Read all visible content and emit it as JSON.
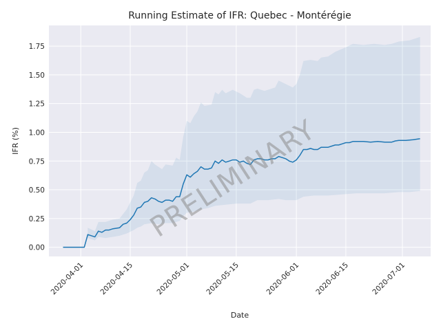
{
  "chart_data": {
    "type": "line",
    "title": "Running Estimate of IFR: Quebec - Montérégie",
    "xlabel": "Date",
    "ylabel": "IFR (%)",
    "watermark": "PRELIMINARY",
    "grid": true,
    "colors": {
      "background": "#eaeaf2",
      "grid": "#ffffff",
      "line": "#1f77b4",
      "band": "#1f77b4"
    },
    "xlim": [
      "2020-03-23",
      "2020-07-09"
    ],
    "ylim": [
      -0.08,
      1.93
    ],
    "x_ticks": [
      "2020-04-01",
      "2020-04-15",
      "2020-05-01",
      "2020-05-15",
      "2020-06-01",
      "2020-06-15",
      "2020-07-01"
    ],
    "y_ticks": [
      "0.00",
      "0.25",
      "0.50",
      "0.75",
      "1.00",
      "1.25",
      "1.50",
      "1.75"
    ],
    "series": [
      {
        "points": [
          [
            "2020-03-27",
            0.0
          ],
          [
            "2020-04-01",
            0.0
          ],
          [
            "2020-04-02",
            0.0
          ],
          [
            "2020-04-03",
            0.11
          ],
          [
            "2020-04-05",
            0.09
          ],
          [
            "2020-04-06",
            0.14
          ],
          [
            "2020-04-07",
            0.13
          ],
          [
            "2020-04-08",
            0.15
          ],
          [
            "2020-04-09",
            0.15
          ],
          [
            "2020-04-10",
            0.16
          ],
          [
            "2020-04-12",
            0.17
          ],
          [
            "2020-04-13",
            0.2
          ],
          [
            "2020-04-14",
            0.21
          ],
          [
            "2020-04-15",
            0.24
          ],
          [
            "2020-04-16",
            0.28
          ],
          [
            "2020-04-17",
            0.34
          ],
          [
            "2020-04-18",
            0.35
          ],
          [
            "2020-04-19",
            0.39
          ],
          [
            "2020-04-20",
            0.4
          ],
          [
            "2020-04-21",
            0.43
          ],
          [
            "2020-04-22",
            0.42
          ],
          [
            "2020-04-23",
            0.4
          ],
          [
            "2020-04-24",
            0.39
          ],
          [
            "2020-04-25",
            0.41
          ],
          [
            "2020-04-26",
            0.41
          ],
          [
            "2020-04-27",
            0.4
          ],
          [
            "2020-04-28",
            0.44
          ],
          [
            "2020-04-29",
            0.44
          ],
          [
            "2020-04-30",
            0.55
          ],
          [
            "2020-05-01",
            0.63
          ],
          [
            "2020-05-02",
            0.61
          ],
          [
            "2020-05-03",
            0.64
          ],
          [
            "2020-05-04",
            0.66
          ],
          [
            "2020-05-05",
            0.7
          ],
          [
            "2020-05-06",
            0.68
          ],
          [
            "2020-05-07",
            0.68
          ],
          [
            "2020-05-08",
            0.69
          ],
          [
            "2020-05-09",
            0.75
          ],
          [
            "2020-05-10",
            0.73
          ],
          [
            "2020-05-11",
            0.76
          ],
          [
            "2020-05-12",
            0.74
          ],
          [
            "2020-05-13",
            0.75
          ],
          [
            "2020-05-14",
            0.76
          ],
          [
            "2020-05-15",
            0.76
          ],
          [
            "2020-05-16",
            0.74
          ],
          [
            "2020-05-17",
            0.75
          ],
          [
            "2020-05-18",
            0.73
          ],
          [
            "2020-05-19",
            0.72
          ],
          [
            "2020-05-20",
            0.76
          ],
          [
            "2020-05-21",
            0.77
          ],
          [
            "2020-05-22",
            0.77
          ],
          [
            "2020-05-23",
            0.76
          ],
          [
            "2020-05-24",
            0.76
          ],
          [
            "2020-05-25",
            0.77
          ],
          [
            "2020-05-26",
            0.77
          ],
          [
            "2020-05-27",
            0.79
          ],
          [
            "2020-05-28",
            0.78
          ],
          [
            "2020-05-29",
            0.77
          ],
          [
            "2020-05-30",
            0.75
          ],
          [
            "2020-05-31",
            0.74
          ],
          [
            "2020-06-01",
            0.76
          ],
          [
            "2020-06-02",
            0.8
          ],
          [
            "2020-06-03",
            0.85
          ],
          [
            "2020-06-04",
            0.85
          ],
          [
            "2020-06-05",
            0.86
          ],
          [
            "2020-06-06",
            0.85
          ],
          [
            "2020-06-07",
            0.85
          ],
          [
            "2020-06-08",
            0.87
          ],
          [
            "2020-06-09",
            0.87
          ],
          [
            "2020-06-10",
            0.87
          ],
          [
            "2020-06-11",
            0.88
          ],
          [
            "2020-06-12",
            0.89
          ],
          [
            "2020-06-13",
            0.89
          ],
          [
            "2020-06-14",
            0.9
          ],
          [
            "2020-06-15",
            0.91
          ],
          [
            "2020-06-16",
            0.91
          ],
          [
            "2020-06-17",
            0.92
          ],
          [
            "2020-06-18",
            0.92
          ],
          [
            "2020-06-20",
            0.92
          ],
          [
            "2020-06-22",
            0.915
          ],
          [
            "2020-06-24",
            0.92
          ],
          [
            "2020-06-26",
            0.915
          ],
          [
            "2020-06-28",
            0.915
          ],
          [
            "2020-06-29",
            0.925
          ],
          [
            "2020-06-30",
            0.93
          ],
          [
            "2020-07-02",
            0.93
          ],
          [
            "2020-07-04",
            0.935
          ],
          [
            "2020-07-06",
            0.945
          ]
        ],
        "band_upper": [
          [
            "2020-04-03",
            0.17
          ],
          [
            "2020-04-05",
            0.14
          ],
          [
            "2020-04-06",
            0.22
          ],
          [
            "2020-04-08",
            0.22
          ],
          [
            "2020-04-10",
            0.24
          ],
          [
            "2020-04-12",
            0.25
          ],
          [
            "2020-04-14",
            0.33
          ],
          [
            "2020-04-16",
            0.45
          ],
          [
            "2020-04-17",
            0.56
          ],
          [
            "2020-04-18",
            0.58
          ],
          [
            "2020-04-19",
            0.65
          ],
          [
            "2020-04-20",
            0.67
          ],
          [
            "2020-04-21",
            0.75
          ],
          [
            "2020-04-22",
            0.72
          ],
          [
            "2020-04-24",
            0.68
          ],
          [
            "2020-04-25",
            0.72
          ],
          [
            "2020-04-27",
            0.71
          ],
          [
            "2020-04-28",
            0.78
          ],
          [
            "2020-04-29",
            0.76
          ],
          [
            "2020-04-30",
            0.96
          ],
          [
            "2020-05-01",
            1.1
          ],
          [
            "2020-05-02",
            1.08
          ],
          [
            "2020-05-03",
            1.14
          ],
          [
            "2020-05-04",
            1.18
          ],
          [
            "2020-05-05",
            1.26
          ],
          [
            "2020-05-06",
            1.23
          ],
          [
            "2020-05-08",
            1.24
          ],
          [
            "2020-05-09",
            1.35
          ],
          [
            "2020-05-10",
            1.33
          ],
          [
            "2020-05-11",
            1.37
          ],
          [
            "2020-05-12",
            1.34
          ],
          [
            "2020-05-14",
            1.37
          ],
          [
            "2020-05-16",
            1.34
          ],
          [
            "2020-05-18",
            1.3
          ],
          [
            "2020-05-19",
            1.3
          ],
          [
            "2020-05-20",
            1.37
          ],
          [
            "2020-05-21",
            1.38
          ],
          [
            "2020-05-23",
            1.36
          ],
          [
            "2020-05-25",
            1.38
          ],
          [
            "2020-05-26",
            1.39
          ],
          [
            "2020-05-27",
            1.45
          ],
          [
            "2020-05-29",
            1.42
          ],
          [
            "2020-05-31",
            1.39
          ],
          [
            "2020-06-01",
            1.42
          ],
          [
            "2020-06-02",
            1.5
          ],
          [
            "2020-06-03",
            1.62
          ],
          [
            "2020-06-05",
            1.63
          ],
          [
            "2020-06-07",
            1.62
          ],
          [
            "2020-06-08",
            1.65
          ],
          [
            "2020-06-10",
            1.66
          ],
          [
            "2020-06-12",
            1.7
          ],
          [
            "2020-06-15",
            1.74
          ],
          [
            "2020-06-17",
            1.77
          ],
          [
            "2020-06-20",
            1.76
          ],
          [
            "2020-06-23",
            1.77
          ],
          [
            "2020-06-26",
            1.76
          ],
          [
            "2020-06-28",
            1.77
          ],
          [
            "2020-06-30",
            1.79
          ],
          [
            "2020-07-03",
            1.8
          ],
          [
            "2020-07-06",
            1.83
          ]
        ],
        "band_lower": [
          [
            "2020-04-03",
            0.08
          ],
          [
            "2020-04-05",
            0.06
          ],
          [
            "2020-04-06",
            0.09
          ],
          [
            "2020-04-08",
            0.08
          ],
          [
            "2020-04-10",
            0.09
          ],
          [
            "2020-04-12",
            0.1
          ],
          [
            "2020-04-14",
            0.12
          ],
          [
            "2020-04-16",
            0.15
          ],
          [
            "2020-04-17",
            0.17
          ],
          [
            "2020-04-18",
            0.18
          ],
          [
            "2020-04-19",
            0.2
          ],
          [
            "2020-04-21",
            0.21
          ],
          [
            "2020-04-23",
            0.2
          ],
          [
            "2020-04-25",
            0.21
          ],
          [
            "2020-04-27",
            0.21
          ],
          [
            "2020-04-29",
            0.23
          ],
          [
            "2020-04-30",
            0.27
          ],
          [
            "2020-05-01",
            0.3
          ],
          [
            "2020-05-03",
            0.31
          ],
          [
            "2020-05-05",
            0.33
          ],
          [
            "2020-05-07",
            0.34
          ],
          [
            "2020-05-09",
            0.36
          ],
          [
            "2020-05-12",
            0.37
          ],
          [
            "2020-05-15",
            0.38
          ],
          [
            "2020-05-17",
            0.38
          ],
          [
            "2020-05-19",
            0.38
          ],
          [
            "2020-05-21",
            0.41
          ],
          [
            "2020-05-24",
            0.41
          ],
          [
            "2020-05-27",
            0.42
          ],
          [
            "2020-05-29",
            0.41
          ],
          [
            "2020-06-01",
            0.41
          ],
          [
            "2020-06-03",
            0.44
          ],
          [
            "2020-06-06",
            0.45
          ],
          [
            "2020-06-10",
            0.45
          ],
          [
            "2020-06-14",
            0.46
          ],
          [
            "2020-06-18",
            0.47
          ],
          [
            "2020-06-22",
            0.47
          ],
          [
            "2020-06-26",
            0.47
          ],
          [
            "2020-06-30",
            0.48
          ],
          [
            "2020-07-03",
            0.48
          ],
          [
            "2020-07-06",
            0.49
          ]
        ]
      }
    ]
  }
}
